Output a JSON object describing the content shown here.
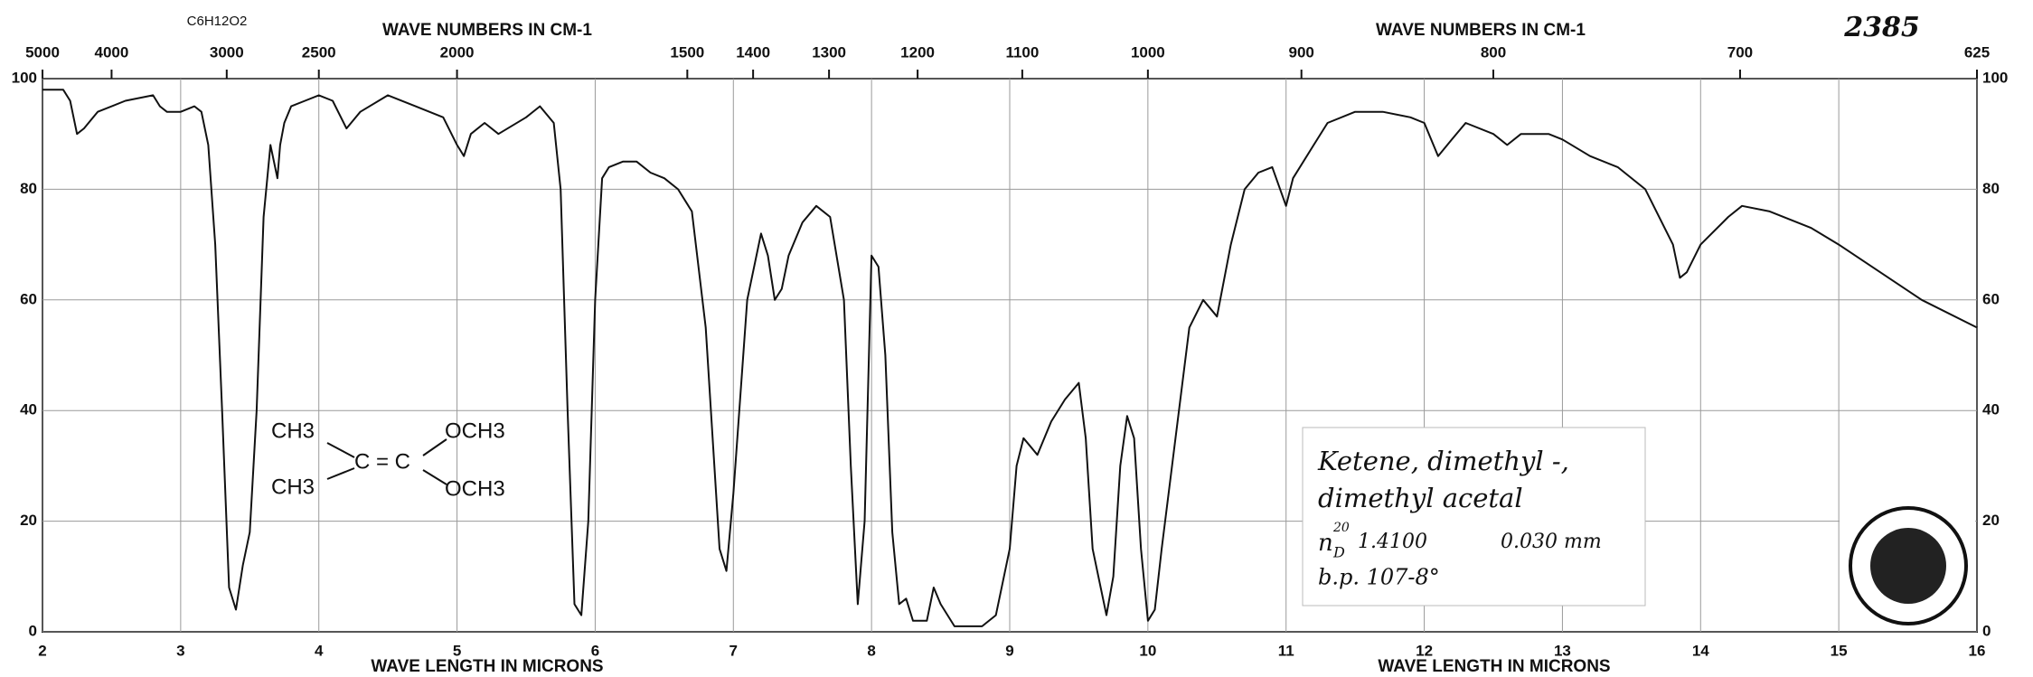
{
  "chart_data": {
    "type": "line",
    "formula": "C6H12O2",
    "catalog_number": "2385",
    "xlabel": "WAVE LENGTH IN MICRONS",
    "x2label": "WAVE NUMBERS IN CM-1",
    "xlim": [
      2,
      16
    ],
    "ylim": [
      0,
      100
    ],
    "xticks": [
      2,
      3,
      4,
      5,
      6,
      7,
      8,
      9,
      10,
      11,
      12,
      13,
      14,
      15,
      16
    ],
    "yticks": [
      0,
      20,
      40,
      60,
      80,
      100
    ],
    "x2ticks": [
      5000,
      4000,
      3000,
      2500,
      2000,
      1500,
      1400,
      1300,
      1200,
      1100,
      1000,
      900,
      800,
      700,
      625
    ],
    "grid": true,
    "x": [
      2.0,
      2.15,
      2.2,
      2.25,
      2.3,
      2.4,
      2.6,
      2.8,
      2.85,
      2.9,
      3.0,
      3.1,
      3.15,
      3.2,
      3.25,
      3.3,
      3.35,
      3.4,
      3.45,
      3.5,
      3.55,
      3.6,
      3.65,
      3.7,
      3.72,
      3.75,
      3.8,
      3.9,
      4.0,
      4.1,
      4.2,
      4.3,
      4.5,
      4.7,
      4.9,
      5.0,
      5.05,
      5.1,
      5.2,
      5.3,
      5.5,
      5.6,
      5.7,
      5.75,
      5.8,
      5.85,
      5.9,
      5.95,
      6.0,
      6.05,
      6.1,
      6.2,
      6.3,
      6.4,
      6.5,
      6.6,
      6.7,
      6.8,
      6.9,
      6.95,
      7.0,
      7.1,
      7.2,
      7.25,
      7.3,
      7.35,
      7.4,
      7.5,
      7.6,
      7.7,
      7.8,
      7.85,
      7.9,
      7.95,
      8.0,
      8.05,
      8.1,
      8.15,
      8.2,
      8.25,
      8.3,
      8.4,
      8.45,
      8.5,
      8.6,
      8.8,
      8.9,
      9.0,
      9.05,
      9.1,
      9.2,
      9.3,
      9.4,
      9.5,
      9.55,
      9.6,
      9.7,
      9.75,
      9.8,
      9.85,
      9.9,
      9.95,
      10.0,
      10.05,
      10.1,
      10.2,
      10.3,
      10.4,
      10.5,
      10.6,
      10.7,
      10.8,
      10.9,
      11.0,
      11.05,
      11.2,
      11.3,
      11.5,
      11.7,
      11.9,
      12.0,
      12.1,
      12.2,
      12.3,
      12.5,
      12.6,
      12.7,
      12.9,
      13.0,
      13.2,
      13.4,
      13.6,
      13.8,
      13.85,
      13.9,
      14.0,
      14.2,
      14.3,
      14.5,
      14.8,
      15.0,
      15.3,
      15.6,
      16.0
    ],
    "series": [
      {
        "color": "#111111",
        "values": [
          98,
          98,
          96,
          90,
          91,
          94,
          96,
          97,
          95,
          94,
          94,
          95,
          94,
          88,
          70,
          40,
          8,
          4,
          12,
          18,
          40,
          75,
          88,
          82,
          88,
          92,
          95,
          96,
          97,
          96,
          91,
          94,
          97,
          95,
          93,
          88,
          86,
          90,
          92,
          90,
          93,
          95,
          92,
          80,
          40,
          5,
          3,
          20,
          60,
          82,
          84,
          85,
          85,
          83,
          82,
          80,
          76,
          55,
          15,
          11,
          25,
          60,
          72,
          68,
          60,
          62,
          68,
          74,
          77,
          75,
          60,
          30,
          5,
          20,
          68,
          66,
          50,
          18,
          5,
          6,
          2,
          2,
          8,
          5,
          1,
          1,
          3,
          15,
          30,
          35,
          32,
          38,
          42,
          45,
          35,
          15,
          3,
          10,
          30,
          39,
          35,
          15,
          2,
          4,
          15,
          35,
          55,
          60,
          57,
          70,
          80,
          83,
          84,
          77,
          82,
          88,
          92,
          94,
          94,
          93,
          92,
          86,
          89,
          92,
          90,
          88,
          90,
          90,
          89,
          86,
          84,
          80,
          70,
          64,
          65,
          70,
          75,
          77,
          76,
          73,
          70,
          65,
          60,
          55
        ]
      }
    ],
    "structure": {
      "groups": [
        "CH3",
        "CH3",
        "C = C",
        "OCH3",
        "OCH3"
      ]
    },
    "note": [
      "Ketene, dimethyl -,",
      "dimethyl acetal",
      "n",
      "20",
      "D",
      "1.4100",
      "0.030 mm",
      "b.p. 107-8°"
    ]
  }
}
